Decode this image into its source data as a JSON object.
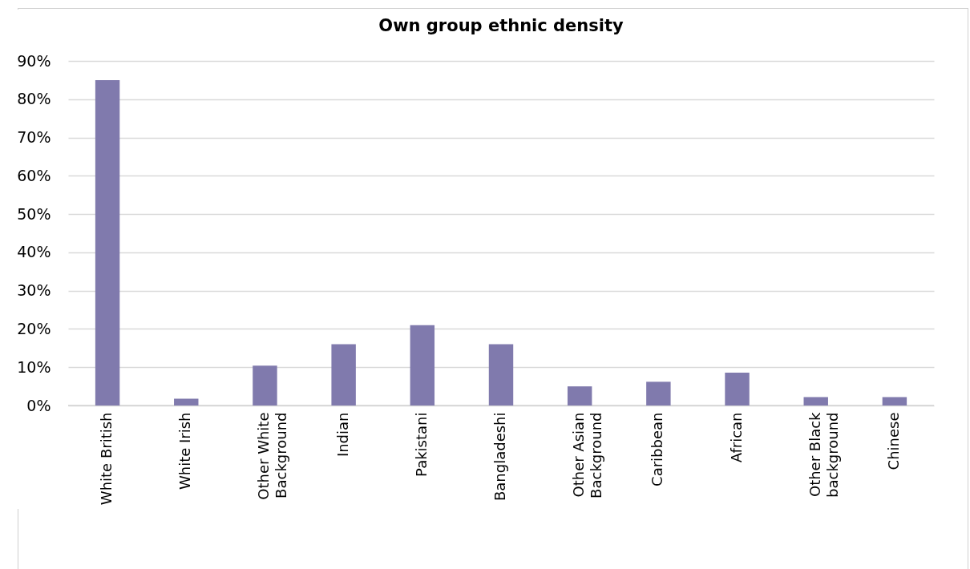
{
  "chart_data": {
    "type": "bar",
    "title": "Own group ethnic density",
    "categories": [
      "White British",
      "White Irish",
      "Other White Background",
      "Indian",
      "Pakistani",
      "Bangladeshi",
      "Other Asian Background",
      "Caribbean",
      "African",
      "Other Black background",
      "Chinese"
    ],
    "values": [
      85,
      1.8,
      10.4,
      16,
      21,
      16,
      5,
      6.2,
      8.6,
      2.2,
      2.2
    ],
    "color": "#807aad",
    "ylim": [
      0,
      90
    ],
    "yticks": [
      {
        "value": 0,
        "label": "0%"
      },
      {
        "value": 10,
        "label": "10%"
      },
      {
        "value": 20,
        "label": "20%"
      },
      {
        "value": 30,
        "label": "30%"
      },
      {
        "value": 40,
        "label": "40%"
      },
      {
        "value": 50,
        "label": "50%"
      },
      {
        "value": 60,
        "label": "60%"
      },
      {
        "value": 70,
        "label": "70%"
      },
      {
        "value": 80,
        "label": "80%"
      },
      {
        "value": 90,
        "label": "90%"
      }
    ],
    "grid": true
  }
}
